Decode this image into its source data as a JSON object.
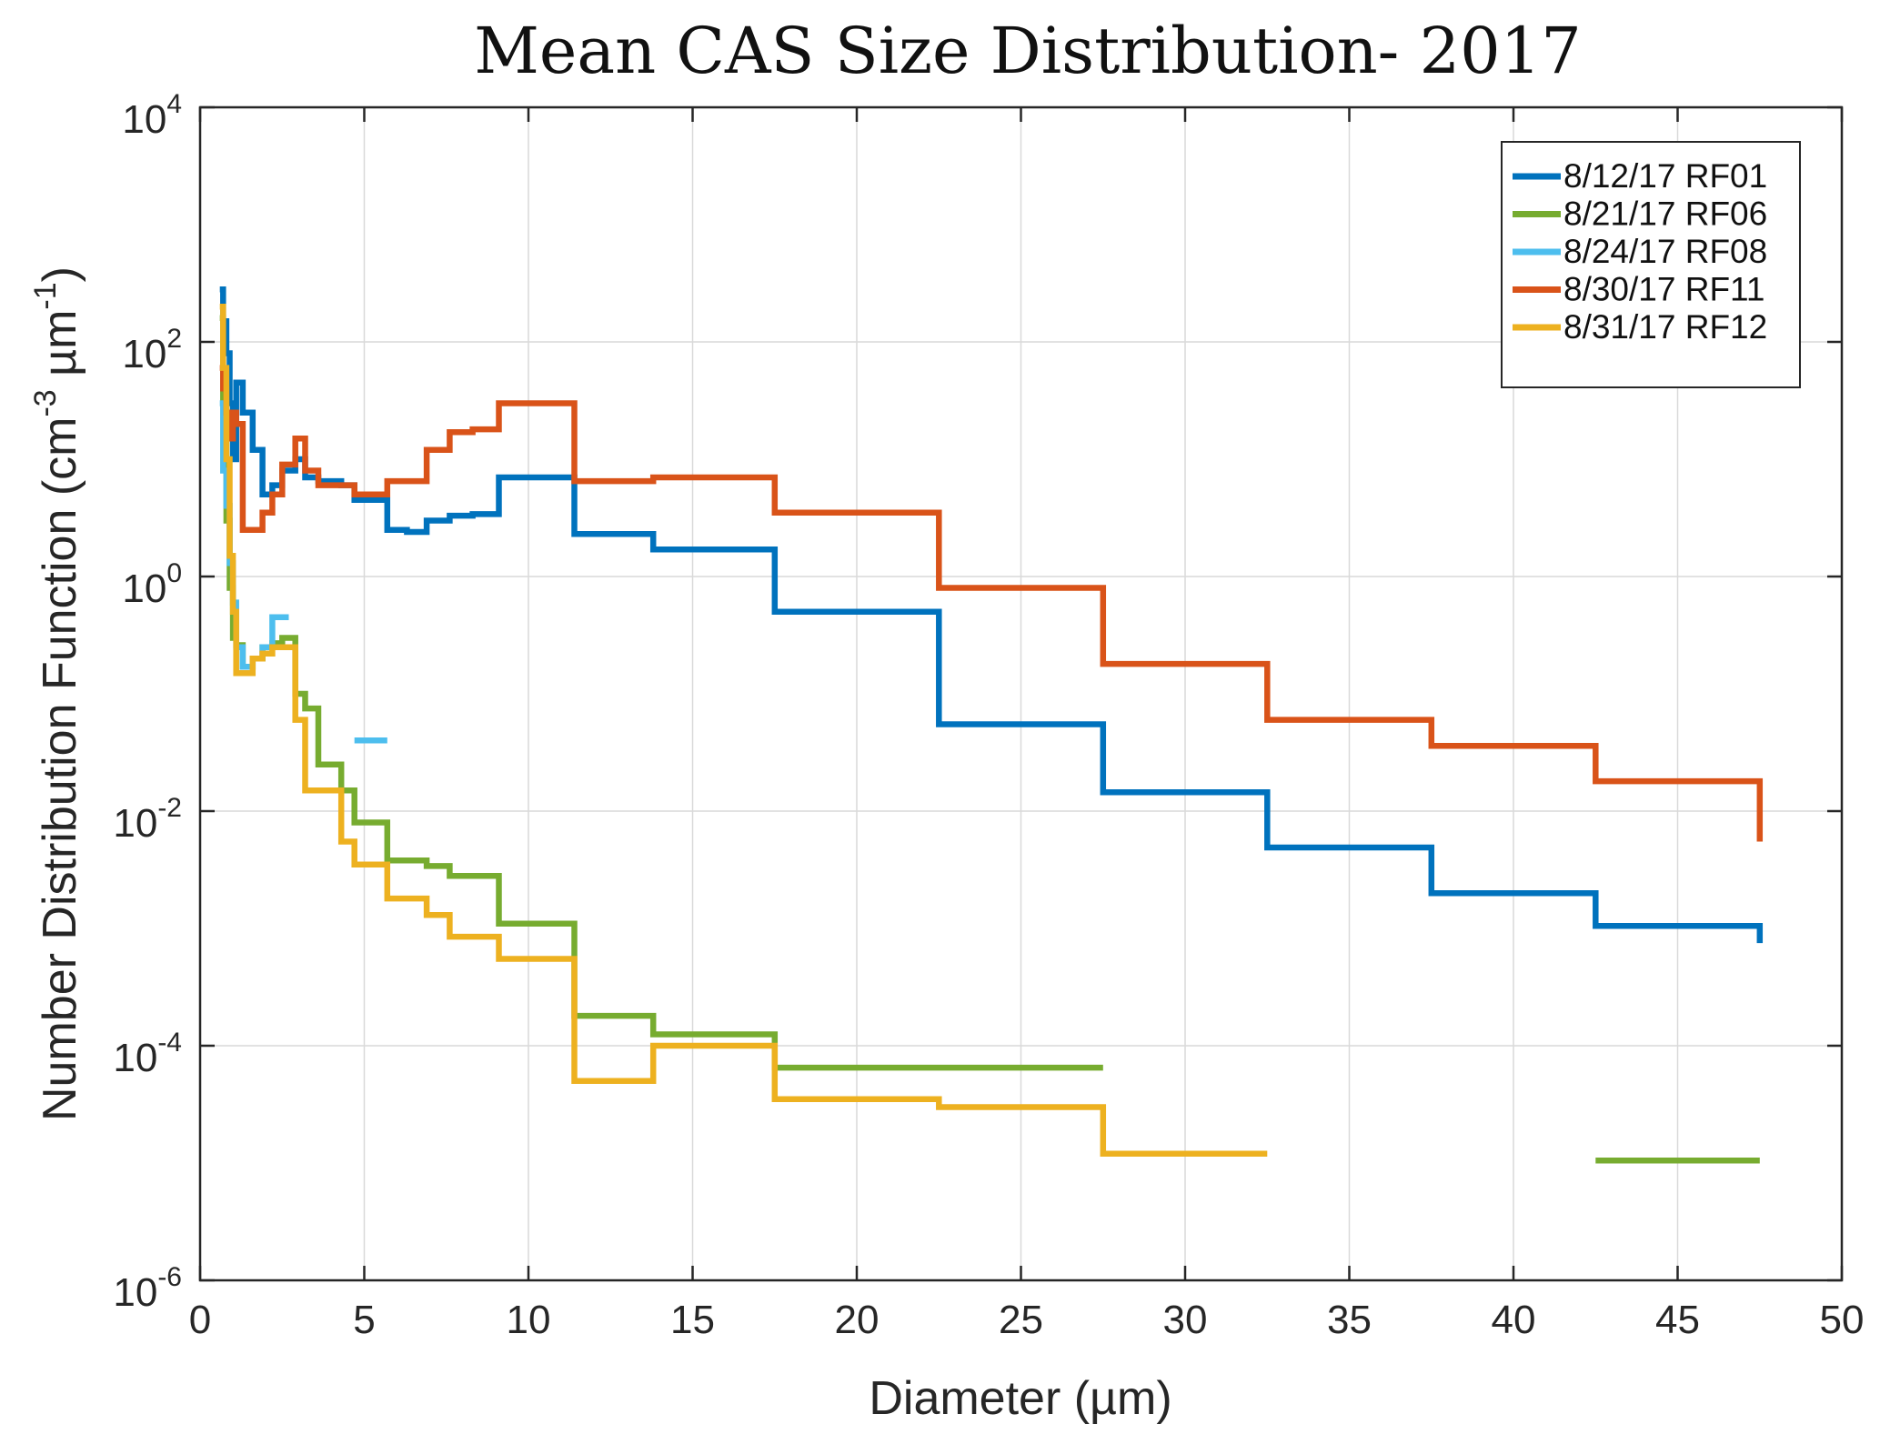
{
  "chart_data": {
    "type": "line",
    "step": "stairs",
    "title": "Mean CAS Size Distribution- 2017",
    "xlabel": "Diameter (µm)",
    "ylabel": {
      "prefix": "Number Distribution Function (cm",
      "sup1": "-3",
      "mid": " µm",
      "sup2": "-1",
      "suffix": ")"
    },
    "x_scale": "linear",
    "y_scale": "log",
    "xlim": [
      0,
      50
    ],
    "ylim": [
      1e-06,
      10000.0
    ],
    "x_ticks": [
      0,
      5,
      10,
      15,
      20,
      25,
      30,
      35,
      40,
      45,
      50
    ],
    "y_ticks": [
      {
        "value": 1e-06,
        "base": "10",
        "exp": "-6"
      },
      {
        "value": 0.0001,
        "base": "10",
        "exp": "-4"
      },
      {
        "value": 0.01,
        "base": "10",
        "exp": "-2"
      },
      {
        "value": 1,
        "base": "10",
        "exp": "0"
      },
      {
        "value": 100,
        "base": "10",
        "exp": "2"
      },
      {
        "value": 10000,
        "base": "10",
        "exp": "4"
      }
    ],
    "grid": true,
    "legend": {
      "position": "top-right"
    },
    "series": [
      {
        "name": "8/12/17 RF01",
        "color": "#0072BD",
        "segments": [
          [
            [
              0.6,
              280
            ],
            [
              0.7,
              150
            ],
            [
              0.8,
              80
            ],
            [
              0.9,
              30
            ],
            [
              1.0,
              10
            ],
            [
              1.1,
              45
            ],
            [
              1.3,
              25
            ],
            [
              1.6,
              12
            ],
            [
              1.9,
              5
            ],
            [
              2.2,
              6
            ],
            [
              2.5,
              8
            ],
            [
              2.9,
              10
            ],
            [
              3.2,
              7
            ],
            [
              3.6,
              6.5
            ],
            [
              4.3,
              6
            ],
            [
              4.7,
              4.5
            ],
            [
              5.7,
              2.5
            ],
            [
              6.3,
              2.4
            ],
            [
              6.9,
              3
            ],
            [
              7.6,
              3.3
            ],
            [
              8.3,
              3.4
            ],
            [
              9.1,
              7
            ],
            [
              10.3,
              7
            ],
            [
              11.4,
              2.3
            ],
            [
              13.8,
              1.7
            ],
            [
              17.5,
              0.5
            ],
            [
              22.5,
              0.055
            ],
            [
              27.5,
              0.0145
            ],
            [
              32.5,
              0.0049
            ],
            [
              37.5,
              0.002
            ],
            [
              42.5,
              0.00105
            ],
            [
              47.5,
              0.00075
            ]
          ]
        ]
      },
      {
        "name": "8/21/17 RF06",
        "color": "#77AC30",
        "segments": [
          [
            [
              0.6,
              160
            ],
            [
              0.7,
              30
            ],
            [
              0.8,
              3
            ],
            [
              0.9,
              0.8
            ],
            [
              1.0,
              0.3
            ],
            [
              1.1,
              0.26
            ],
            [
              1.3,
              0.17
            ],
            [
              1.6,
              0.2
            ],
            [
              1.9,
              0.25
            ],
            [
              2.2,
              0.27
            ],
            [
              2.5,
              0.3
            ],
            [
              2.9,
              0.1
            ],
            [
              3.2,
              0.075
            ],
            [
              3.6,
              0.025
            ],
            [
              4.3,
              0.015
            ],
            [
              4.7,
              0.008
            ],
            [
              5.7,
              0.0038
            ],
            [
              6.3,
              0.0038
            ],
            [
              6.9,
              0.0034
            ],
            [
              7.6,
              0.0028
            ],
            [
              8.3,
              0.0028
            ],
            [
              9.1,
              0.0011
            ],
            [
              10.3,
              0.0011
            ],
            [
              11.4,
              0.00018
            ],
            [
              13.8,
              0.000125
            ],
            [
              17.5,
              6.5e-05
            ],
            [
              22.5,
              6.5e-05
            ],
            [
              27.5,
              6.5e-05
            ]
          ],
          [
            [
              42.5,
              1.05e-05
            ],
            [
              47.5,
              1.05e-05
            ]
          ]
        ]
      },
      {
        "name": "8/24/17 RF08",
        "color": "#4DBEEE",
        "segments": [
          [
            [
              0.6,
              30
            ],
            [
              0.7,
              8
            ],
            [
              0.8,
              4
            ],
            [
              0.9,
              1.3
            ],
            [
              1.0,
              0.6
            ],
            [
              1.1,
              0.25
            ],
            [
              1.3,
              0.17
            ],
            [
              1.6,
              0.2
            ],
            [
              1.9,
              0.25
            ],
            [
              2.2,
              0.45
            ],
            [
              2.7,
              0.45
            ]
          ],
          [
            [
              4.7,
              0.04
            ],
            [
              5.7,
              0.04
            ]
          ]
        ]
      },
      {
        "name": "8/30/17 RF11",
        "color": "#D95319",
        "segments": [
          [
            [
              0.6,
              60
            ],
            [
              0.7,
              40
            ],
            [
              0.8,
              25
            ],
            [
              0.9,
              15
            ],
            [
              1.0,
              25
            ],
            [
              1.1,
              20
            ],
            [
              1.3,
              2.5
            ],
            [
              1.6,
              2.5
            ],
            [
              1.9,
              3.5
            ],
            [
              2.2,
              5
            ],
            [
              2.5,
              9
            ],
            [
              2.9,
              15
            ],
            [
              3.2,
              8
            ],
            [
              3.6,
              6
            ],
            [
              4.3,
              6
            ],
            [
              4.7,
              5
            ],
            [
              5.7,
              6.5
            ],
            [
              6.3,
              6.5
            ],
            [
              6.9,
              12
            ],
            [
              7.6,
              17
            ],
            [
              8.3,
              18
            ],
            [
              9.1,
              30
            ],
            [
              10.3,
              30
            ],
            [
              11.4,
              6.5
            ],
            [
              13.8,
              7
            ],
            [
              17.5,
              3.5
            ],
            [
              22.5,
              0.8
            ],
            [
              27.5,
              0.18
            ],
            [
              32.5,
              0.06
            ],
            [
              37.5,
              0.036
            ],
            [
              42.5,
              0.018
            ],
            [
              47.5,
              0.0055
            ]
          ]
        ]
      },
      {
        "name": "8/31/17 RF12",
        "color": "#EDB120",
        "segments": [
          [
            [
              0.6,
              200
            ],
            [
              0.7,
              60
            ],
            [
              0.8,
              10
            ],
            [
              0.9,
              1.5
            ],
            [
              1.0,
              0.5
            ],
            [
              1.1,
              0.15
            ],
            [
              1.3,
              0.15
            ],
            [
              1.6,
              0.2
            ],
            [
              1.9,
              0.22
            ],
            [
              2.2,
              0.25
            ],
            [
              2.5,
              0.25
            ],
            [
              2.9,
              0.06
            ],
            [
              3.2,
              0.015
            ],
            [
              3.6,
              0.015
            ],
            [
              4.3,
              0.0055
            ],
            [
              4.7,
              0.0035
            ],
            [
              5.7,
              0.0018
            ],
            [
              6.3,
              0.0018
            ],
            [
              6.9,
              0.0013
            ],
            [
              7.6,
              0.00085
            ],
            [
              8.3,
              0.00085
            ],
            [
              9.1,
              0.00055
            ],
            [
              10.3,
              0.00055
            ],
            [
              11.4,
              5e-05
            ],
            [
              13.8,
              0.0001
            ],
            [
              17.5,
              3.5e-05
            ],
            [
              22.5,
              3e-05
            ],
            [
              27.5,
              1.2e-05
            ],
            [
              32.5,
              1.2e-05
            ]
          ]
        ]
      }
    ]
  }
}
